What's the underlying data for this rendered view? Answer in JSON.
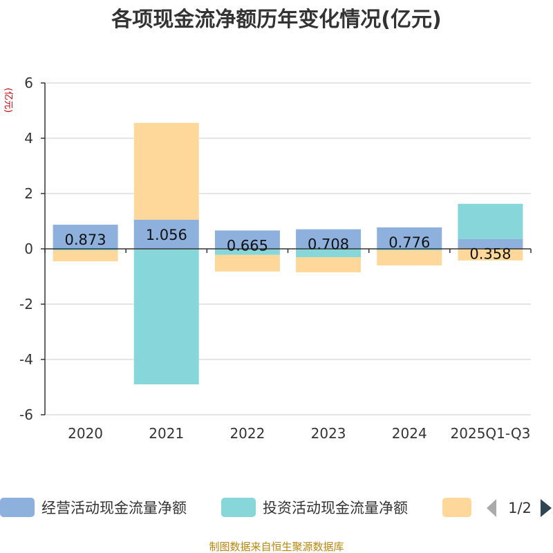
{
  "title": "各项现金流净额历年变化情况(亿元)",
  "unit_label": "(亿元)",
  "source": "制图数据来自恒生聚源数据库",
  "legend": {
    "page": "1/2",
    "prev_icon": "triangle-left-icon",
    "next_icon": "triangle-right-icon"
  },
  "colors": {
    "operating": "#8eb0dc",
    "investing": "#87d6d9",
    "financing": "#fed89a",
    "axis": "#333333",
    "grid": "#cccccc",
    "unit": "#cc0000",
    "source": "#b8860b"
  },
  "chart_data": {
    "type": "bar",
    "stacked": true,
    "categories": [
      "2020",
      "2021",
      "2022",
      "2023",
      "2024",
      "2025Q1-Q3"
    ],
    "series": [
      {
        "name": "经营活动现金流量净额",
        "color": "#8eb0dc",
        "values": [
          0.873,
          1.056,
          0.665,
          0.708,
          0.776,
          0.358
        ],
        "labels": [
          "0.873",
          "1.056",
          "0.665",
          "0.708",
          "0.776",
          "0.358"
        ]
      },
      {
        "name": "投资活动现金流量净额",
        "color": "#87d6d9",
        "values": [
          -0.05,
          -4.9,
          -0.22,
          -0.3,
          -0.05,
          1.27
        ]
      },
      {
        "name": "",
        "color": "#fed89a",
        "values": [
          -0.4,
          3.5,
          -0.6,
          -0.55,
          -0.55,
          -0.42
        ]
      }
    ],
    "ylim": [
      -6,
      6
    ],
    "yticks": [
      6,
      4,
      2,
      0,
      -2,
      -4,
      -6
    ],
    "grid": true,
    "legend_position": "bottom"
  }
}
